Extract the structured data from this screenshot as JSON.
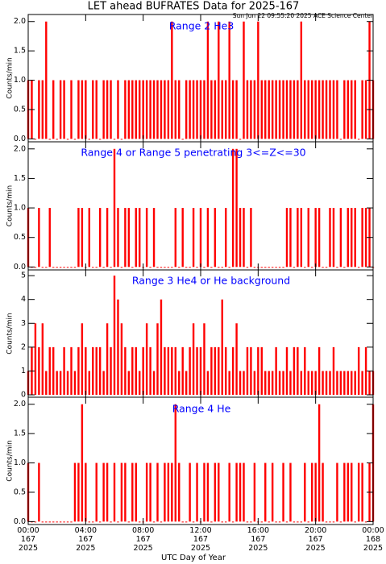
{
  "header": {
    "title": "LET ahead BUFRATES Data for 2025-167",
    "subtitle": "Sun Jun 22 09:55:20 2025 ACE Science Center"
  },
  "x_axis": {
    "label": "UTC Day of Year",
    "xlim": [
      0,
      24
    ],
    "xticks": [
      {
        "value": 0,
        "label": "00:00\n167\n2025"
      },
      {
        "value": 4,
        "label": "04:00\n167\n2025"
      },
      {
        "value": 8,
        "label": "08:00\n167\n2025"
      },
      {
        "value": 12,
        "label": "12:00\n167\n2025"
      },
      {
        "value": 16,
        "label": "16:00\n167\n2025"
      },
      {
        "value": 20,
        "label": "20:00\n167\n2025"
      },
      {
        "value": 24,
        "label": "00:00\n168\n2025"
      }
    ]
  },
  "x": [
    0,
    0.25,
    0.5,
    0.75,
    1,
    1.25,
    1.5,
    1.75,
    2,
    2.25,
    2.5,
    2.75,
    3,
    3.25,
    3.5,
    3.75,
    4,
    4.25,
    4.5,
    4.75,
    5,
    5.25,
    5.5,
    5.75,
    6,
    6.25,
    6.5,
    6.75,
    7,
    7.25,
    7.5,
    7.75,
    8,
    8.25,
    8.5,
    8.75,
    9,
    9.25,
    9.5,
    9.75,
    10,
    10.25,
    10.5,
    10.75,
    11,
    11.25,
    11.5,
    11.75,
    12,
    12.25,
    12.5,
    12.75,
    13,
    13.25,
    13.5,
    13.75,
    14,
    14.25,
    14.5,
    14.75,
    15,
    15.25,
    15.5,
    15.75,
    16,
    16.25,
    16.5,
    16.75,
    17,
    17.25,
    17.5,
    17.75,
    18,
    18.25,
    18.5,
    18.75,
    19,
    19.25,
    19.5,
    19.75,
    20,
    20.25,
    20.5,
    20.75,
    21,
    21.25,
    21.5,
    21.75,
    22,
    22.25,
    22.5,
    22.75,
    23,
    23.25,
    23.5,
    23.75,
    24
  ],
  "chart_data": [
    {
      "type": "bar",
      "title": "Range 2 He3",
      "ylabel": "Counts/min",
      "color": "#ff0000",
      "title_color": "#0000ff",
      "ylim": [
        -0.05,
        2.12
      ],
      "yticks": [
        {
          "value": 0,
          "label": "0.0"
        },
        {
          "value": 0.5,
          "label": "0.5"
        },
        {
          "value": 1,
          "label": "1.0"
        },
        {
          "value": 1.5,
          "label": "1.5"
        },
        {
          "value": 2,
          "label": "2.0"
        }
      ],
      "values": [
        1,
        1,
        0,
        1,
        1,
        2,
        0,
        1,
        0,
        1,
        1,
        0,
        1,
        0,
        1,
        1,
        1,
        0,
        1,
        1,
        0,
        1,
        1,
        1,
        0,
        1,
        0,
        1,
        1,
        1,
        1,
        1,
        1,
        1,
        1,
        1,
        1,
        1,
        1,
        1,
        2,
        1,
        1,
        0,
        1,
        1,
        1,
        1,
        1,
        1,
        2,
        1,
        1,
        2,
        1,
        1,
        2,
        1,
        1,
        0,
        2,
        1,
        1,
        1,
        2,
        1,
        1,
        1,
        1,
        1,
        1,
        1,
        1,
        1,
        1,
        1,
        2,
        1,
        1,
        1,
        1,
        1,
        1,
        1,
        1,
        1,
        1,
        0,
        1,
        1,
        1,
        1,
        0,
        1,
        1,
        2,
        1
      ]
    },
    {
      "type": "bar",
      "title": "Range 4 or Range 5 penetrating 3<=Z<=30",
      "ylabel": "Counts/min",
      "color": "#ff0000",
      "title_color": "#0000ff",
      "ylim": [
        -0.05,
        2.12
      ],
      "yticks": [
        {
          "value": 0,
          "label": "0.0"
        },
        {
          "value": 0.5,
          "label": "0.5"
        },
        {
          "value": 1,
          "label": "1.0"
        },
        {
          "value": 1.5,
          "label": "1.5"
        },
        {
          "value": 2,
          "label": "2.0"
        }
      ],
      "values": [
        1,
        0,
        0,
        1,
        0,
        0,
        1,
        0,
        0,
        0,
        0,
        0,
        0,
        0,
        1,
        1,
        0,
        1,
        0,
        0,
        1,
        0,
        1,
        0,
        2,
        1,
        0,
        1,
        1,
        0,
        1,
        1,
        0,
        1,
        0,
        1,
        0,
        0,
        0,
        0,
        0,
        1,
        0,
        1,
        0,
        0,
        1,
        0,
        1,
        0,
        1,
        0,
        1,
        0,
        0,
        1,
        0,
        2,
        2,
        1,
        1,
        0,
        1,
        0,
        0,
        0,
        0,
        0,
        0,
        0,
        0,
        0,
        1,
        1,
        0,
        1,
        1,
        0,
        1,
        0,
        1,
        1,
        0,
        0,
        1,
        1,
        0,
        1,
        0,
        1,
        1,
        1,
        0,
        1,
        1,
        1,
        0
      ]
    },
    {
      "type": "bar",
      "title": "Range 3 He4 or He background",
      "ylabel": "Counts/min",
      "color": "#ff0000",
      "title_color": "#0000ff",
      "ylim": [
        -0.1,
        5.24
      ],
      "yticks": [
        0,
        1,
        2,
        3,
        4,
        5
      ],
      "values": [
        1,
        2,
        3,
        2,
        3,
        1,
        2,
        2,
        1,
        1,
        2,
        1,
        2,
        1,
        2,
        3,
        2,
        1,
        2,
        2,
        2,
        1,
        3,
        2,
        5,
        4,
        3,
        2,
        1,
        2,
        2,
        1,
        2,
        3,
        2,
        1,
        3,
        4,
        2,
        2,
        2,
        2,
        1,
        2,
        1,
        2,
        3,
        2,
        2,
        3,
        1,
        2,
        2,
        2,
        4,
        2,
        1,
        2,
        3,
        1,
        1,
        2,
        2,
        1,
        2,
        2,
        1,
        1,
        1,
        2,
        1,
        1,
        2,
        1,
        2,
        2,
        1,
        2,
        1,
        1,
        1,
        2,
        1,
        1,
        1,
        2,
        1,
        1,
        1,
        1,
        1,
        1,
        2,
        1,
        2,
        1,
        1
      ]
    },
    {
      "type": "bar",
      "title": "Range 4 He",
      "ylabel": "Counts/min",
      "color": "#ff0000",
      "title_color": "#0000ff",
      "ylim": [
        -0.05,
        2.12
      ],
      "yticks": [
        {
          "value": 0,
          "label": "0.0"
        },
        {
          "value": 0.5,
          "label": "0.5"
        },
        {
          "value": 1,
          "label": "1.0"
        },
        {
          "value": 1.5,
          "label": "1.5"
        },
        {
          "value": 2,
          "label": "2.0"
        }
      ],
      "values": [
        1,
        0,
        0,
        1,
        0,
        0,
        0,
        0,
        0,
        0,
        0,
        0,
        0,
        1,
        1,
        2,
        1,
        0,
        0,
        1,
        0,
        1,
        1,
        0,
        1,
        0,
        1,
        1,
        0,
        1,
        1,
        0,
        0,
        1,
        1,
        0,
        1,
        0,
        1,
        1,
        1,
        2,
        1,
        0,
        0,
        1,
        0,
        1,
        0,
        1,
        1,
        0,
        1,
        1,
        0,
        0,
        1,
        0,
        1,
        1,
        1,
        0,
        0,
        1,
        0,
        0,
        1,
        0,
        1,
        0,
        0,
        1,
        0,
        1,
        0,
        0,
        0,
        1,
        0,
        1,
        1,
        2,
        1,
        0,
        0,
        0,
        1,
        0,
        1,
        1,
        1,
        0,
        1,
        1,
        0,
        1,
        2
      ]
    }
  ]
}
